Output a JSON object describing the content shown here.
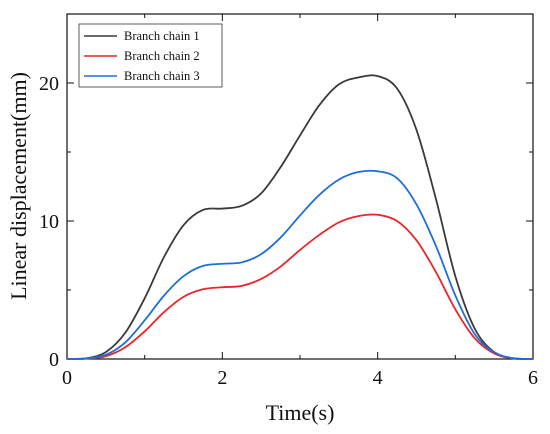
{
  "chart_data": {
    "type": "line",
    "xlabel": "Time(s)",
    "ylabel": "Linear displacement(mm)",
    "xlim": [
      0,
      6
    ],
    "ylim": [
      0,
      25
    ],
    "x_ticks": [
      "0",
      "2",
      "4",
      "6"
    ],
    "y_ticks": [
      "0",
      "10",
      "20"
    ],
    "grid": false,
    "legend_position": "top-left",
    "x": [
      0,
      0.25,
      0.5,
      0.75,
      1.0,
      1.25,
      1.5,
      1.75,
      2.0,
      2.25,
      2.5,
      2.75,
      3.0,
      3.25,
      3.5,
      3.75,
      4.0,
      4.25,
      4.5,
      4.75,
      5.0,
      5.25,
      5.5,
      5.75,
      6.0
    ],
    "series": [
      {
        "name": "Branch chain 1",
        "color": "#3a3a3a",
        "values": [
          0,
          0.05,
          0.5,
          1.9,
          4.4,
          7.4,
          9.7,
          10.8,
          10.9,
          11.1,
          12.0,
          13.9,
          16.2,
          18.4,
          19.9,
          20.4,
          20.5,
          19.6,
          16.6,
          11.6,
          6.0,
          2.2,
          0.5,
          0.05,
          0
        ]
      },
      {
        "name": "Branch chain 2",
        "color": "#e8262b",
        "values": [
          0,
          0.03,
          0.2,
          0.85,
          2.0,
          3.4,
          4.5,
          5.05,
          5.2,
          5.3,
          5.8,
          6.7,
          7.9,
          9.0,
          9.9,
          10.35,
          10.45,
          10.0,
          8.6,
          6.3,
          3.6,
          1.5,
          0.4,
          0.04,
          0
        ]
      },
      {
        "name": "Branch chain 3",
        "color": "#1f6fd6",
        "values": [
          0,
          0.04,
          0.3,
          1.2,
          2.8,
          4.6,
          6.0,
          6.75,
          6.9,
          7.0,
          7.6,
          8.8,
          10.4,
          11.9,
          13.0,
          13.55,
          13.6,
          13.1,
          11.2,
          8.2,
          4.6,
          1.8,
          0.5,
          0.05,
          0
        ]
      }
    ]
  }
}
